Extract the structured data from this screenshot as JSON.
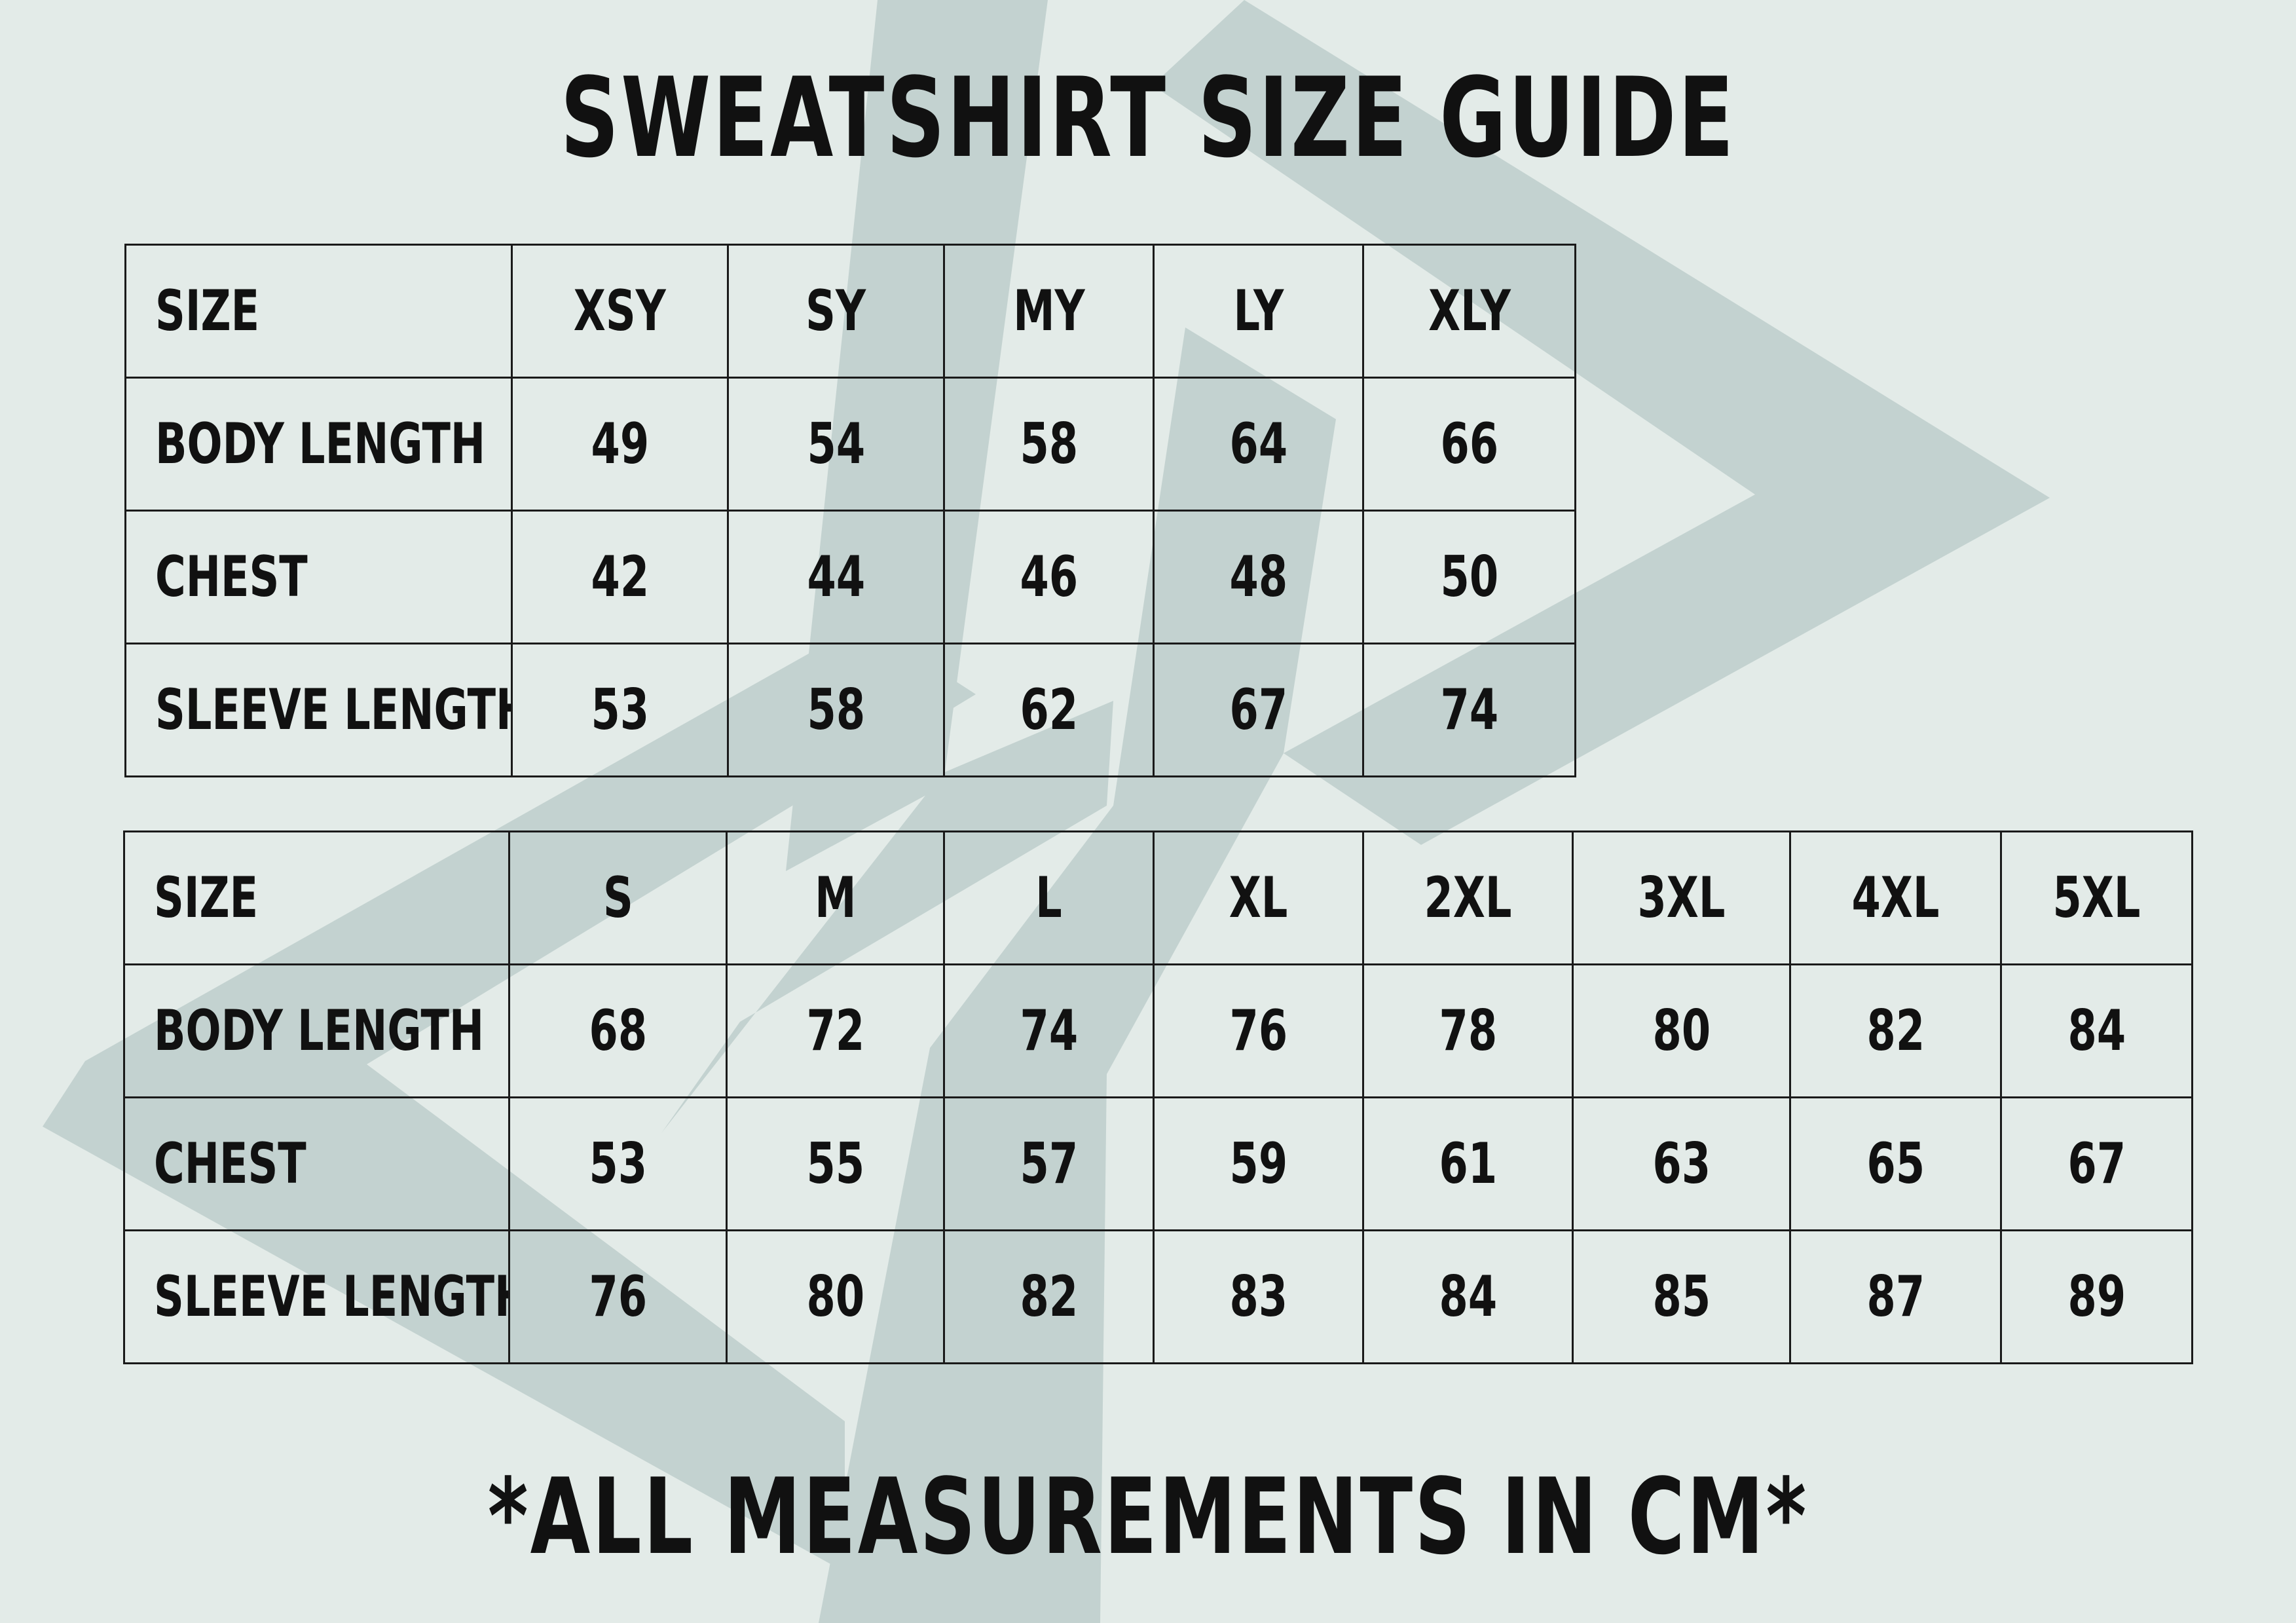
{
  "title": "SWEATSHIRT SIZE GUIDE",
  "footer": "*ALL MEASUREMENTS IN CM*",
  "colors": {
    "background": "#e3ebe8",
    "watermark": "#c3d2d0",
    "text": "#111111",
    "grid": "#1a1a1a"
  },
  "youth_table": {
    "header": [
      "SIZE",
      "XSY",
      "SY",
      "MY",
      "LY",
      "XLY"
    ],
    "rows": [
      {
        "label": "BODY LENGTH",
        "values": [
          "49",
          "54",
          "58",
          "64",
          "66"
        ]
      },
      {
        "label": "CHEST",
        "values": [
          "42",
          "44",
          "46",
          "48",
          "50"
        ]
      },
      {
        "label": "SLEEVE LENGTH",
        "values": [
          "53",
          "58",
          "62",
          "67",
          "74"
        ]
      }
    ]
  },
  "adult_table": {
    "header": [
      "SIZE",
      "S",
      "M",
      "L",
      "XL",
      "2XL",
      "3XL",
      "4XL",
      "5XL"
    ],
    "rows": [
      {
        "label": "BODY LENGTH",
        "values": [
          "68",
          "72",
          "74",
          "76",
          "78",
          "80",
          "82",
          "84"
        ]
      },
      {
        "label": "CHEST",
        "values": [
          "53",
          "55",
          "57",
          "59",
          "61",
          "63",
          "65",
          "67"
        ]
      },
      {
        "label": "SLEEVE LENGTH",
        "values": [
          "76",
          "80",
          "82",
          "83",
          "84",
          "85",
          "87",
          "89"
        ]
      }
    ]
  }
}
